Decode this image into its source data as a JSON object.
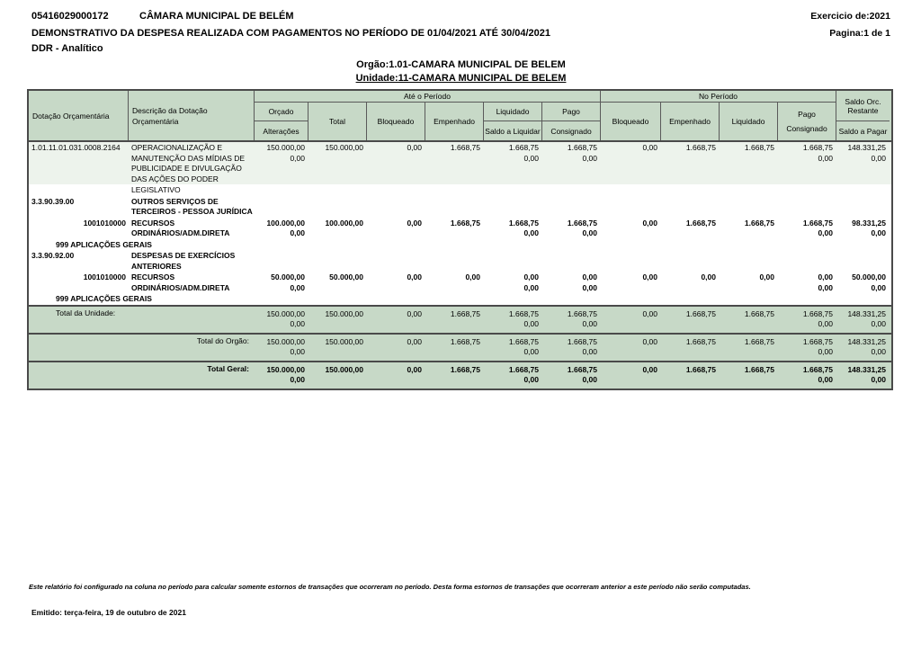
{
  "header": {
    "code": "05416029000172",
    "entity": "CÂMARA MUNICIPAL DE BELÉM",
    "exercise": "Exercicio de:2021",
    "title": "DEMONSTRATIVO DA DESPESA REALIZADA COM PAGAMENTOS NO PERÍODO DE 01/04/2021 ATÉ 30/04/2021",
    "page": "Pagina:1 de 1",
    "report_type": "DDR - Analítico",
    "orgao": "Orgão:1.01-CAMARA MUNICIPAL DE BELEM",
    "unidade": "Unidade:11-CAMARA MUNICIPAL DE BELEM"
  },
  "colors": {
    "header_green": "#c7d9c7",
    "row_highlight": "#edf3ec",
    "border": "#4a4a4a"
  },
  "table": {
    "groups": {
      "ate_periodo": "Até o Período",
      "no_periodo": "No Período"
    },
    "columns": {
      "dotacao": "Dotação Orçamentária",
      "descricao": [
        "Descrição da Dotação",
        "Orçamentária"
      ],
      "orcado": [
        "Orçado",
        "Alterações"
      ],
      "total": "Total",
      "bloqueado": "Bloqueado",
      "empenhado": "Empenhado",
      "liquidado": [
        "Liquidado",
        "Saldo a Liquidar"
      ],
      "pago": [
        "Pago",
        "Consignado"
      ],
      "np_bloqueado": "Bloqueado",
      "np_empenhado": "Empenhado",
      "np_liquidado": "Liquidado",
      "np_pago": [
        "Pago",
        "Consignado"
      ],
      "saldo": [
        "Saldo Orc.",
        "Restante",
        "Saldo a Pagar"
      ]
    },
    "value_order": [
      "orcado",
      "total",
      "bloqueado",
      "empenhado",
      "liquidado",
      "pago",
      "np_bloqueado",
      "np_empenhado",
      "np_liquidado",
      "np_pago",
      "saldo"
    ],
    "rows": [
      {
        "cls": "hl",
        "c1": "1.01.11.01.031.0008.2164",
        "c2": [
          "OPERACIONALIZAÇÃO E",
          "MANUTENÇÃO DAS MÍDIAS DE",
          "PUBLICIDADE E DIVULGAÇÃO",
          "DAS AÇÕES DO PODER"
        ],
        "v": {
          "orcado": [
            "150.000,00",
            "0,00"
          ],
          "total": [
            "150.000,00"
          ],
          "bloqueado": [
            "0,00"
          ],
          "empenhado": [
            "1.668,75"
          ],
          "liquidado": [
            "1.668,75",
            "0,00"
          ],
          "pago": [
            "1.668,75",
            "0,00"
          ],
          "np_bloqueado": [
            "0,00"
          ],
          "np_empenhado": [
            "1.668,75"
          ],
          "np_liquidado": [
            "1.668,75"
          ],
          "np_pago": [
            "1.668,75",
            "0,00"
          ],
          "saldo": [
            "148.331,25",
            "0,00"
          ]
        }
      },
      {
        "cls": "",
        "c1": "",
        "c2": [
          "LEGISLATIVO"
        ],
        "v": {}
      },
      {
        "cls": "b",
        "c1": "3.3.90.39.00",
        "c2": [
          "OUTROS SERVIÇOS DE",
          "TERCEIROS - PESSOA JURÍDICA"
        ],
        "v": {}
      },
      {
        "cls": "b",
        "c1": "1001010000",
        "c1r": true,
        "c2": [
          "RECURSOS",
          "ORDINÁRIOS/ADM.DIRETA"
        ],
        "v": {
          "orcado": [
            "100.000,00",
            "0,00"
          ],
          "total": [
            "100.000,00"
          ],
          "bloqueado": [
            "0,00"
          ],
          "empenhado": [
            "1.668,75"
          ],
          "liquidado": [
            "1.668,75",
            "0,00"
          ],
          "pago": [
            "1.668,75",
            "0,00"
          ],
          "np_bloqueado": [
            "0,00"
          ],
          "np_empenhado": [
            "1.668,75"
          ],
          "np_liquidado": [
            "1.668,75"
          ],
          "np_pago": [
            "1.668,75",
            "0,00"
          ],
          "saldo": [
            "98.331,25",
            "0,00"
          ]
        }
      },
      {
        "cls": "b",
        "span": "999 APLICAÇÕES GERAIS"
      },
      {
        "cls": "b",
        "c1": "3.3.90.92.00",
        "c2": [
          "DESPESAS DE EXERCÍCIOS",
          "ANTERIORES"
        ],
        "v": {}
      },
      {
        "cls": "b",
        "c1": "1001010000",
        "c1r": true,
        "c2": [
          "RECURSOS",
          "ORDINÁRIOS/ADM.DIRETA"
        ],
        "v": {
          "orcado": [
            "50.000,00",
            "0,00"
          ],
          "total": [
            "50.000,00"
          ],
          "bloqueado": [
            "0,00"
          ],
          "empenhado": [
            "0,00"
          ],
          "liquidado": [
            "0,00",
            "0,00"
          ],
          "pago": [
            "0,00",
            "0,00"
          ],
          "np_bloqueado": [
            "0,00"
          ],
          "np_empenhado": [
            "0,00"
          ],
          "np_liquidado": [
            "0,00"
          ],
          "np_pago": [
            "0,00",
            "0,00"
          ],
          "saldo": [
            "50.000,00",
            "0,00"
          ]
        }
      },
      {
        "cls": "b",
        "span": "999 APLICAÇÕES GERAIS"
      }
    ],
    "totals": [
      {
        "label": "Total da Unidade:",
        "align": "left",
        "bold": false,
        "v": {
          "orcado": [
            "150.000,00",
            "0,00"
          ],
          "total": [
            "150.000,00"
          ],
          "bloqueado": [
            "0,00"
          ],
          "empenhado": [
            "1.668,75"
          ],
          "liquidado": [
            "1.668,75",
            "0,00"
          ],
          "pago": [
            "1.668,75",
            "0,00"
          ],
          "np_bloqueado": [
            "0,00"
          ],
          "np_empenhado": [
            "1.668,75"
          ],
          "np_liquidado": [
            "1.668,75"
          ],
          "np_pago": [
            "1.668,75",
            "0,00"
          ],
          "saldo": [
            "148.331,25",
            "0,00"
          ]
        }
      },
      {
        "label": "Total do Orgão:",
        "align": "right",
        "bold": false,
        "v": {
          "orcado": [
            "150.000,00",
            "0,00"
          ],
          "total": [
            "150.000,00"
          ],
          "bloqueado": [
            "0,00"
          ],
          "empenhado": [
            "1.668,75"
          ],
          "liquidado": [
            "1.668,75",
            "0,00"
          ],
          "pago": [
            "1.668,75",
            "0,00"
          ],
          "np_bloqueado": [
            "0,00"
          ],
          "np_empenhado": [
            "1.668,75"
          ],
          "np_liquidado": [
            "1.668,75"
          ],
          "np_pago": [
            "1.668,75",
            "0,00"
          ],
          "saldo": [
            "148.331,25",
            "0,00"
          ]
        }
      },
      {
        "label": "Total Geral:",
        "align": "right",
        "bold": true,
        "v": {
          "orcado": [
            "150.000,00",
            "0,00"
          ],
          "total": [
            "150.000,00"
          ],
          "bloqueado": [
            "0,00"
          ],
          "empenhado": [
            "1.668,75"
          ],
          "liquidado": [
            "1.668,75",
            "0,00"
          ],
          "pago": [
            "1.668,75",
            "0,00"
          ],
          "np_bloqueado": [
            "0,00"
          ],
          "np_empenhado": [
            "1.668,75"
          ],
          "np_liquidado": [
            "1.668,75"
          ],
          "np_pago": [
            "1.668,75",
            "0,00"
          ],
          "saldo": [
            "148.331,25",
            "0,00"
          ]
        }
      }
    ]
  },
  "footer": {
    "note": "Este relatório foi configurado na coluna no período para calcular somente estornos de transações que ocorreram no período. Desta forma estornos de transações que ocorreram anterior a este período não serão computadas.",
    "emitted": "Emitido: terça-feira, 19 de outubro de 2021"
  }
}
